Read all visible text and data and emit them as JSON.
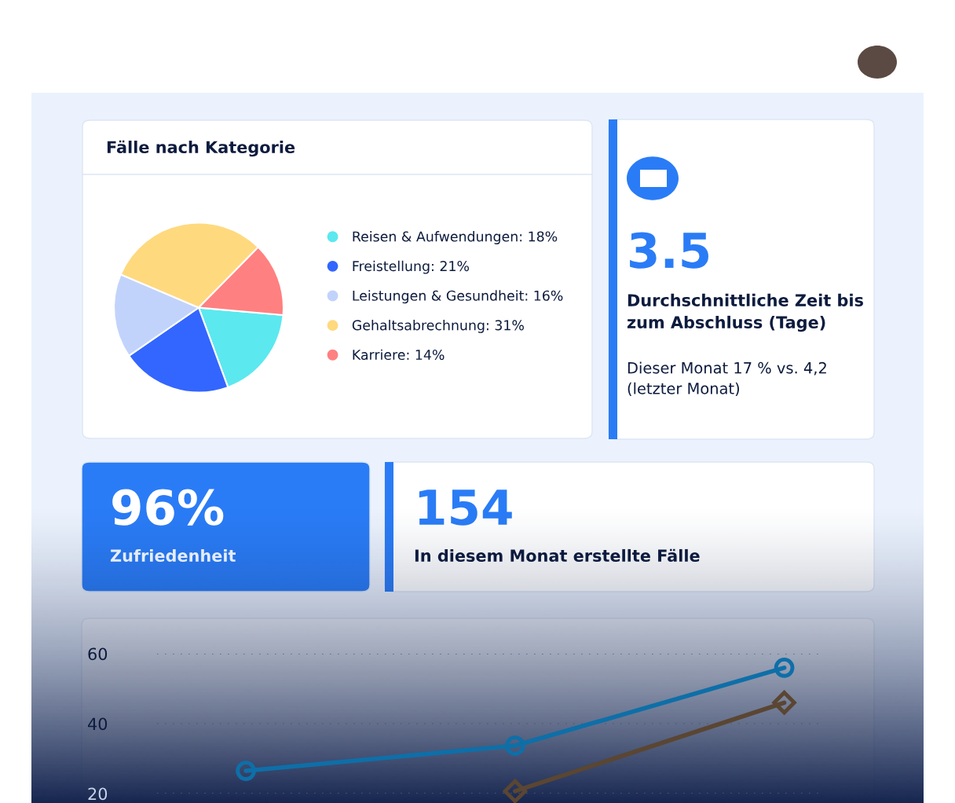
{
  "chart_data": [
    {
      "type": "pie",
      "title": "Fälle nach Kategorie",
      "legend": "right",
      "categories": [
        "Reisen & Aufwendungen: 18%",
        "Freistellung: 21%",
        "Leistungen & Gesundheit: 16%",
        "Gehaltsabrechnung: 31%",
        "Karriere: 14%"
      ],
      "values": [
        18,
        21,
        16,
        31,
        14
      ],
      "colors": [
        "#5ce8ef",
        "#3366ff",
        "#c2d3fb",
        "#ffd97e",
        "#ff8080"
      ]
    },
    {
      "type": "other",
      "title": "3.5",
      "subtitle": "Durchschnittliche Zeit bis\nzum Abschluss (Tage)",
      "annotations": [
        "Dieser Monat 17 % vs. 4,2\n(letzter Monat)"
      ]
    },
    {
      "type": "other",
      "title": "96%",
      "subtitle": "Zufriedenheit"
    },
    {
      "type": "other",
      "title": "154",
      "subtitle": "In diesem Monat erstellte Fälle"
    },
    {
      "type": "line",
      "categories": [
        null,
        null,
        null
      ],
      "ylim": [
        20,
        60
      ],
      "yticks": [
        20,
        40,
        60
      ],
      "grid": "y",
      "tick_labels": "y",
      "line_style": "solid",
      "series": [
        {
          "color": "#0e6fa8",
          "marker": "circle",
          "values": [
            26.5,
            33.7,
            56
          ]
        },
        {
          "color": "#5a4632",
          "marker": "diamond",
          "values": [
            null,
            20.7,
            46
          ]
        }
      ]
    }
  ]
}
